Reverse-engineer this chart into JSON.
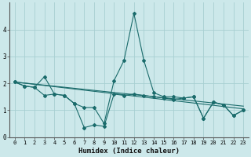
{
  "xlabel": "Humidex (Indice chaleur)",
  "bg_color": "#cce8ea",
  "line_color": "#1a6b6b",
  "grid_color": "#a8cfd2",
  "xlim": [
    -0.5,
    23.5
  ],
  "ylim": [
    0,
    5.0
  ],
  "yticks": [
    0,
    1,
    2,
    3,
    4
  ],
  "xticks": [
    0,
    1,
    2,
    3,
    4,
    5,
    6,
    7,
    8,
    9,
    10,
    11,
    12,
    13,
    14,
    15,
    16,
    17,
    18,
    19,
    20,
    21,
    22,
    23
  ],
  "line_jagged": {
    "x": [
      0,
      1,
      2,
      3,
      4,
      5,
      6,
      7,
      8,
      9,
      10,
      11,
      12,
      13,
      14,
      15,
      16,
      17,
      18,
      19,
      20,
      21,
      22,
      23
    ],
    "y": [
      2.05,
      1.9,
      1.85,
      2.25,
      1.6,
      1.55,
      1.25,
      1.1,
      1.1,
      0.5,
      2.1,
      2.85,
      4.6,
      2.85,
      1.65,
      1.5,
      1.5,
      1.45,
      1.5,
      0.7,
      1.3,
      1.2,
      0.8,
      1.0
    ]
  },
  "line_lower": {
    "x": [
      0,
      1,
      2,
      3,
      4,
      5,
      6,
      7,
      8,
      9,
      10,
      11,
      12,
      13,
      14,
      15,
      16,
      17,
      18,
      19,
      20,
      21,
      22,
      23
    ],
    "y": [
      2.05,
      1.9,
      1.85,
      1.55,
      1.6,
      1.55,
      1.25,
      0.35,
      0.45,
      0.4,
      1.6,
      1.55,
      1.6,
      1.55,
      1.5,
      1.45,
      1.4,
      1.45,
      1.5,
      0.7,
      1.3,
      1.2,
      0.8,
      1.0
    ]
  },
  "line_trend1": {
    "x": [
      0,
      23
    ],
    "y": [
      2.05,
      1.05
    ]
  },
  "line_trend2": {
    "x": [
      0,
      23
    ],
    "y": [
      2.05,
      1.15
    ]
  }
}
